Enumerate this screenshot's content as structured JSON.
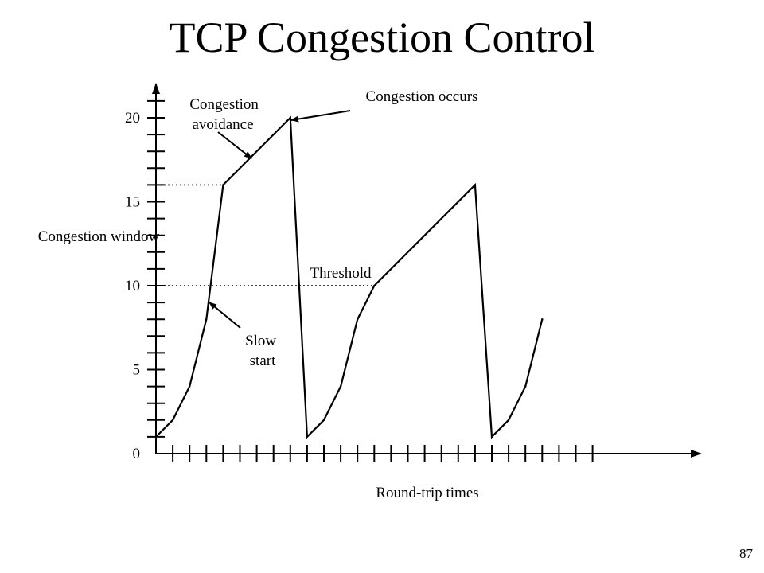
{
  "slide": {
    "title": "TCP Congestion Control",
    "page_number": "87"
  },
  "chart_data": {
    "type": "line",
    "title": "TCP Congestion Control",
    "xlabel": "Round-trip times",
    "ylabel": "Congestion window",
    "xlim": [
      0,
      32
    ],
    "ylim": [
      0,
      21
    ],
    "yticks": [
      0,
      5,
      10,
      15,
      20
    ],
    "ytick_labels": [
      "0",
      "5",
      "10",
      "15",
      "20"
    ],
    "xtick_count": 26,
    "grid": false,
    "series": [
      {
        "values": [
          {
            "x": 0,
            "y": 1
          },
          {
            "x": 1,
            "y": 2
          },
          {
            "x": 2,
            "y": 4
          },
          {
            "x": 3,
            "y": 8
          },
          {
            "x": 4,
            "y": 16
          },
          {
            "x": 8,
            "y": 20
          },
          {
            "x": 9,
            "y": 1
          },
          {
            "x": 10,
            "y": 2
          },
          {
            "x": 11,
            "y": 4
          },
          {
            "x": 12,
            "y": 8
          },
          {
            "x": 13,
            "y": 10
          },
          {
            "x": 19,
            "y": 16
          },
          {
            "x": 20,
            "y": 1
          },
          {
            "x": 21,
            "y": 2
          },
          {
            "x": 22,
            "y": 4
          },
          {
            "x": 23,
            "y": 8
          }
        ]
      }
    ],
    "threshold_lines": [
      {
        "y": 16,
        "x_start": 0,
        "x_end": 4
      },
      {
        "y": 10,
        "x_start": 0,
        "x_end": 13
      }
    ],
    "annotations": [
      {
        "id": "congestion-avoidance",
        "lines": [
          "Congestion",
          "avoidance"
        ],
        "target": {
          "x": 6,
          "y": 18
        }
      },
      {
        "id": "congestion-occurs",
        "lines": [
          "Congestion occurs"
        ],
        "target": {
          "x": 8,
          "y": 20
        }
      },
      {
        "id": "threshold",
        "lines": [
          "Threshold"
        ]
      },
      {
        "id": "slow-start",
        "lines": [
          "Slow",
          "start"
        ],
        "target": {
          "x": 3.1,
          "y": 8.5
        }
      }
    ]
  }
}
